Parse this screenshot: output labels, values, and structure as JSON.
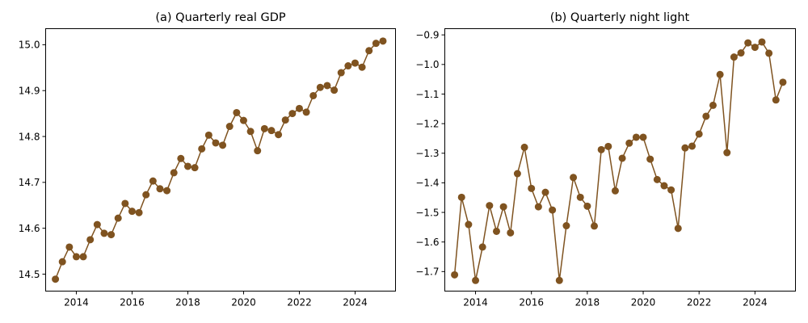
{
  "colors": {
    "series": "#7f5320",
    "axes": "#000000",
    "background": "#ffffff"
  },
  "chart_data": [
    {
      "type": "line",
      "title": "(a) Quarterly real GDP",
      "xlabel": "",
      "ylabel": "",
      "xlim": [
        2012.9,
        2025.45
      ],
      "ylim": [
        14.463,
        15.035
      ],
      "xticks": [
        2014,
        2016,
        2018,
        2020,
        2022,
        2024
      ],
      "yticks": [
        14.5,
        14.6,
        14.7,
        14.8,
        14.9,
        15.0
      ],
      "ytick_labels": [
        "14.5",
        "14.6",
        "14.7",
        "14.8",
        "14.9",
        "15.0"
      ],
      "grid": false,
      "series": [
        {
          "marker": "circle",
          "x": [
            2013.25,
            2013.5,
            2013.75,
            2014.0,
            2014.25,
            2014.5,
            2014.75,
            2015.0,
            2015.25,
            2015.5,
            2015.75,
            2016.0,
            2016.25,
            2016.5,
            2016.75,
            2017.0,
            2017.25,
            2017.5,
            2017.75,
            2018.0,
            2018.25,
            2018.5,
            2018.75,
            2019.0,
            2019.25,
            2019.5,
            2019.75,
            2020.0,
            2020.25,
            2020.5,
            2020.75,
            2021.0,
            2021.25,
            2021.5,
            2021.75,
            2022.0,
            2022.25,
            2022.5,
            2022.75,
            2023.0,
            2023.25,
            2023.5,
            2023.75,
            2024.0,
            2024.25,
            2024.5,
            2024.75,
            2025.0
          ],
          "y": [
            14.489,
            14.527,
            14.559,
            14.538,
            14.538,
            14.575,
            14.608,
            14.589,
            14.586,
            14.622,
            14.654,
            14.637,
            14.634,
            14.673,
            14.703,
            14.686,
            14.682,
            14.721,
            14.752,
            14.735,
            14.732,
            14.773,
            14.803,
            14.786,
            14.781,
            14.822,
            14.852,
            14.835,
            14.811,
            14.769,
            14.817,
            14.813,
            14.804,
            14.836,
            14.85,
            14.861,
            14.853,
            14.889,
            14.907,
            14.911,
            14.901,
            14.939,
            14.954,
            14.96,
            14.951,
            14.987,
            15.003,
            15.008
          ]
        }
      ]
    },
    {
      "type": "line",
      "title": "(b) Quarterly night light",
      "xlabel": "",
      "ylabel": "",
      "xlim": [
        2012.9,
        2025.45
      ],
      "ylim": [
        -1.766,
        -0.879
      ],
      "xticks": [
        2014,
        2016,
        2018,
        2020,
        2022,
        2024
      ],
      "yticks": [
        -1.7,
        -1.6,
        -1.5,
        -1.4,
        -1.3,
        -1.2,
        -1.1,
        -1.0,
        -0.9
      ],
      "ytick_labels": [
        "−1.7",
        "−1.6",
        "−1.5",
        "−1.4",
        "−1.3",
        "−1.2",
        "−1.1",
        "−1.0",
        "−0.9"
      ],
      "grid": false,
      "series": [
        {
          "marker": "circle",
          "x": [
            2013.25,
            2013.5,
            2013.75,
            2014.0,
            2014.25,
            2014.5,
            2014.75,
            2015.0,
            2015.25,
            2015.5,
            2015.75,
            2016.0,
            2016.25,
            2016.5,
            2016.75,
            2017.0,
            2017.25,
            2017.5,
            2017.75,
            2018.0,
            2018.25,
            2018.5,
            2018.75,
            2019.0,
            2019.25,
            2019.5,
            2019.75,
            2020.0,
            2020.25,
            2020.5,
            2020.75,
            2021.0,
            2021.25,
            2021.5,
            2021.75,
            2022.0,
            2022.25,
            2022.5,
            2022.75,
            2023.0,
            2023.25,
            2023.5,
            2023.75,
            2024.0,
            2024.25,
            2024.5,
            2024.75,
            2025.0
          ],
          "y": [
            -1.711,
            -1.449,
            -1.541,
            -1.73,
            -1.617,
            -1.477,
            -1.564,
            -1.481,
            -1.569,
            -1.369,
            -1.28,
            -1.419,
            -1.481,
            -1.432,
            -1.492,
            -1.73,
            -1.545,
            -1.382,
            -1.449,
            -1.479,
            -1.546,
            -1.288,
            -1.277,
            -1.427,
            -1.317,
            -1.266,
            -1.246,
            -1.246,
            -1.32,
            -1.389,
            -1.41,
            -1.424,
            -1.554,
            -1.282,
            -1.276,
            -1.235,
            -1.175,
            -1.138,
            -1.034,
            -1.298,
            -0.975,
            -0.961,
            -0.927,
            -0.942,
            -0.924,
            -0.962,
            -1.12,
            -1.06
          ]
        }
      ]
    }
  ]
}
